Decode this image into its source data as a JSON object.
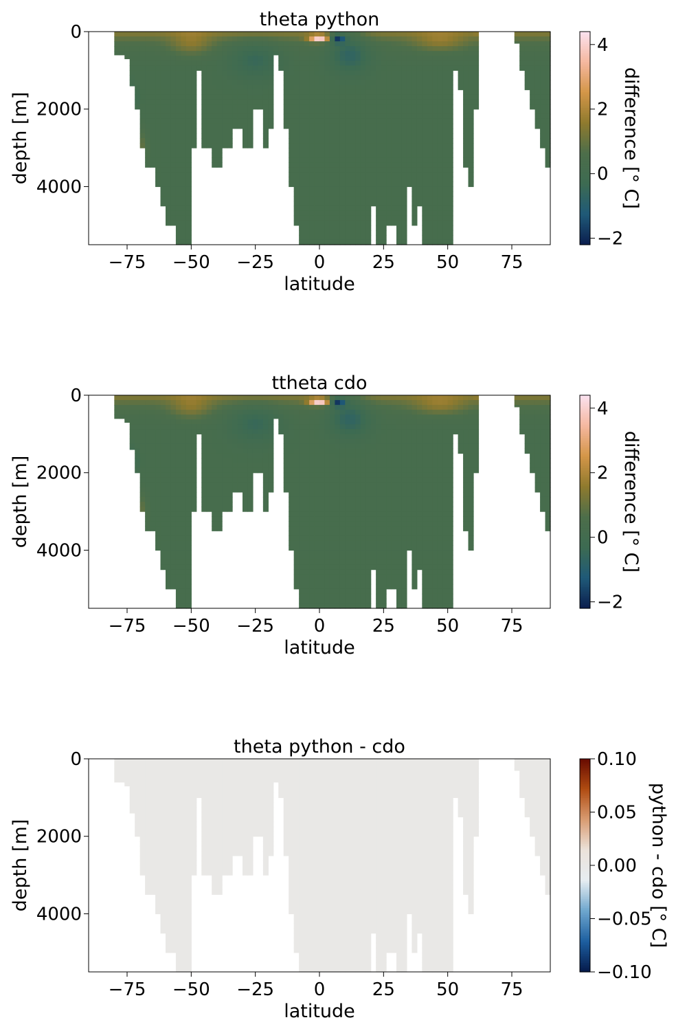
{
  "chart_data": [
    {
      "type": "heatmap",
      "title": "theta python",
      "xlabel": "latitude",
      "ylabel": "depth [m]",
      "xlim": [
        -90,
        90
      ],
      "ylim": [
        5500,
        0
      ],
      "x_ticks": [
        -75,
        -50,
        -25,
        0,
        25,
        50,
        75
      ],
      "x_tick_labels": [
        "−75",
        "−50",
        "−25",
        "0",
        "25",
        "50",
        "75"
      ],
      "y_ticks": [
        0,
        2000,
        4000
      ],
      "y_tick_labels": [
        "0",
        "2000",
        "4000"
      ],
      "colorbar": {
        "label": "difference [° C]",
        "range": [
          -2.2,
          4.4
        ],
        "ticks": [
          -2,
          0,
          2,
          4
        ],
        "tick_labels": [
          "−2",
          "0",
          "2",
          "4"
        ],
        "colormap": "balance-like",
        "colors": [
          "#0b1e4e",
          "#1f5a78",
          "#3d6b52",
          "#4d6e4a",
          "#8f7a2e",
          "#d49648",
          "#f5b8a0",
          "#fbe2f0"
        ]
      },
      "bottom_depth_profile": {
        "lat": [
          -78,
          -76,
          -74,
          -72,
          -70,
          -68,
          -66,
          -64,
          -62,
          -60,
          -58,
          -56,
          -54,
          -52,
          -50,
          -48,
          -46,
          -44,
          -42,
          -40,
          -38,
          -36,
          -34,
          -32,
          -30,
          -28,
          -26,
          -24,
          -22,
          -20,
          -18,
          -16,
          -14,
          -12,
          -10,
          -8,
          -6,
          -4,
          -2,
          0,
          2,
          4,
          6,
          8,
          10,
          12,
          14,
          16,
          18,
          20,
          22,
          24,
          26,
          28,
          30,
          32,
          34,
          36,
          38,
          40,
          42,
          44,
          46,
          48,
          50,
          52,
          54,
          56,
          58,
          60,
          62,
          64,
          66,
          68,
          70,
          72,
          74,
          76,
          78,
          80,
          82,
          84,
          86,
          88,
          90
        ],
        "depth": [
          600,
          700,
          1400,
          2000,
          3000,
          3500,
          3500,
          4000,
          4500,
          5000,
          5000,
          5500,
          5500,
          5500,
          3000,
          1000,
          3000,
          3000,
          3500,
          3500,
          3000,
          3000,
          2500,
          2500,
          3000,
          3000,
          2000,
          2000,
          3000,
          2500,
          600,
          1000,
          2500,
          4000,
          5000,
          5500,
          5500,
          5500,
          5500,
          5500,
          5500,
          5500,
          5500,
          5500,
          5500,
          5500,
          5500,
          5500,
          5500,
          4500,
          5500,
          5500,
          5000,
          5000,
          5500,
          5500,
          4000,
          5000,
          4500,
          5500,
          5500,
          5500,
          5500,
          5500,
          5500,
          1000,
          1500,
          3500,
          4000,
          2000,
          0,
          0,
          0,
          0,
          0,
          0,
          0,
          300,
          1000,
          1500,
          2000,
          2500,
          3000,
          3500,
          4000
        ]
      }
    },
    {
      "type": "heatmap",
      "title": "ttheta cdo",
      "xlabel": "latitude",
      "ylabel": "depth [m]",
      "xlim": [
        -90,
        90
      ],
      "ylim": [
        5500,
        0
      ],
      "x_ticks": [
        -75,
        -50,
        -25,
        0,
        25,
        50,
        75
      ],
      "x_tick_labels": [
        "−75",
        "−50",
        "−25",
        "0",
        "25",
        "50",
        "75"
      ],
      "y_ticks": [
        0,
        2000,
        4000
      ],
      "y_tick_labels": [
        "0",
        "2000",
        "4000"
      ],
      "colorbar": {
        "label": "difference [° C]",
        "range": [
          -2.2,
          4.4
        ],
        "ticks": [
          -2,
          0,
          2,
          4
        ],
        "tick_labels": [
          "−2",
          "0",
          "2",
          "4"
        ],
        "colormap": "balance-like",
        "colors": [
          "#0b1e4e",
          "#1f5a78",
          "#3d6b52",
          "#4d6e4a",
          "#8f7a2e",
          "#d49648",
          "#f5b8a0",
          "#fbe2f0"
        ]
      }
    },
    {
      "type": "heatmap",
      "title": "theta python - cdo",
      "xlabel": "latitude",
      "ylabel": "depth [m]",
      "xlim": [
        -90,
        90
      ],
      "ylim": [
        5500,
        0
      ],
      "x_ticks": [
        -75,
        -50,
        -25,
        0,
        25,
        50,
        75
      ],
      "x_tick_labels": [
        "−75",
        "−50",
        "−25",
        "0",
        "25",
        "50",
        "75"
      ],
      "y_ticks": [
        0,
        2000,
        4000
      ],
      "y_tick_labels": [
        "0",
        "2000",
        "4000"
      ],
      "field_value": 0.0,
      "colorbar": {
        "label": "python - cdo [° C]",
        "range": [
          -0.1,
          0.1
        ],
        "ticks": [
          -0.1,
          -0.05,
          0.0,
          0.05,
          0.1
        ],
        "tick_labels": [
          "−0.10",
          "−0.05",
          "0.00",
          "0.05",
          "0.10"
        ],
        "colormap": "RdBu_r",
        "colors": [
          "#051a4a",
          "#1d5fa0",
          "#6ea6cd",
          "#e6edf1",
          "#ebe2da",
          "#d99c72",
          "#b04c12",
          "#670a00"
        ]
      }
    }
  ]
}
